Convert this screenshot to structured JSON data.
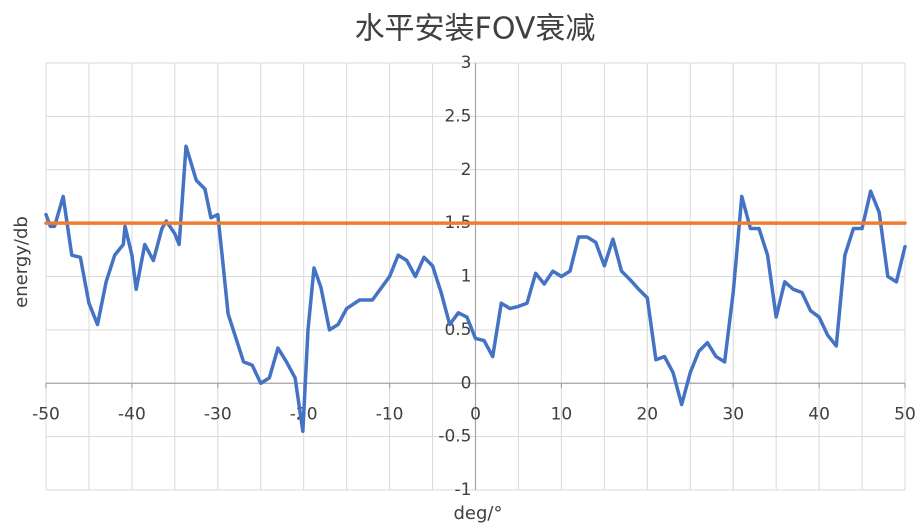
{
  "chart_data": {
    "type": "line",
    "title": "水平安装FOV衰减",
    "x_label": "deg/°",
    "y_label": "energy/db",
    "xlim": [
      -50,
      50
    ],
    "ylim": [
      -1,
      3
    ],
    "xticks": [
      -50,
      -40,
      -30,
      -20,
      -10,
      0,
      10,
      20,
      30,
      40,
      50
    ],
    "yticks": [
      -1,
      -0.5,
      0,
      0.5,
      1,
      1.5,
      2,
      2.5,
      3
    ],
    "xgrid_step": 5,
    "grid": true,
    "series": [
      {
        "color": "#4472c4",
        "x": [
          -50,
          -49.5,
          -49,
          -48,
          -47,
          -46,
          -45,
          -44,
          -43,
          -42,
          -41,
          -40.8,
          -40,
          -39.5,
          -38.5,
          -37.5,
          -36.5,
          -36,
          -35,
          -34.5,
          -33.7,
          -32.5,
          -31.5,
          -30.8,
          -30,
          -29.5,
          -28.8,
          -28,
          -27,
          -26,
          -25,
          -24,
          -23,
          -22,
          -21,
          -20.1,
          -19.5,
          -18.8,
          -18,
          -17,
          -16,
          -15,
          -13.5,
          -12,
          -10,
          -9,
          -8,
          -7,
          -6,
          -5,
          -4,
          -3,
          -2,
          -1,
          0,
          1,
          2,
          3,
          4,
          5,
          6,
          7,
          8,
          9,
          10,
          11,
          12,
          13,
          14,
          15,
          16,
          17,
          18,
          19,
          20,
          21,
          22,
          23,
          24,
          25,
          26,
          27,
          28,
          29,
          30,
          31,
          32,
          33,
          34,
          35,
          36,
          37,
          38,
          39,
          40,
          41,
          42,
          43,
          44,
          45,
          46,
          47,
          48,
          49,
          50
        ],
        "values": [
          1.58,
          1.47,
          1.47,
          1.75,
          1.2,
          1.18,
          0.75,
          0.55,
          0.95,
          1.2,
          1.3,
          1.47,
          1.2,
          0.88,
          1.3,
          1.15,
          1.45,
          1.52,
          1.4,
          1.3,
          2.22,
          1.9,
          1.82,
          1.55,
          1.58,
          1.2,
          0.65,
          0.45,
          0.2,
          0.17,
          0,
          0.05,
          0.33,
          0.2,
          0.05,
          -0.45,
          0.5,
          1.08,
          0.9,
          0.5,
          0.55,
          0.7,
          0.78,
          0.78,
          1.0,
          1.2,
          1.15,
          1.0,
          1.18,
          1.1,
          0.85,
          0.55,
          0.66,
          0.62,
          0.42,
          0.4,
          0.25,
          0.75,
          0.7,
          0.72,
          0.75,
          1.03,
          0.93,
          1.05,
          1.0,
          1.05,
          1.37,
          1.37,
          1.32,
          1.1,
          1.35,
          1.05,
          0.97,
          0.88,
          0.8,
          0.22,
          0.25,
          0.1,
          -0.2,
          0.1,
          0.3,
          0.38,
          0.25,
          0.2,
          0.85,
          1.75,
          1.45,
          1.45,
          1.2,
          0.62,
          0.95,
          0.88,
          0.85,
          0.68,
          0.62,
          0.45,
          0.35,
          1.2,
          1.45,
          1.45,
          1.8,
          1.6,
          1.0,
          0.95,
          1.28
        ]
      },
      {
        "color": "#ed7d31",
        "x": [
          -50,
          50
        ],
        "values": [
          1.5,
          1.5
        ]
      }
    ]
  }
}
